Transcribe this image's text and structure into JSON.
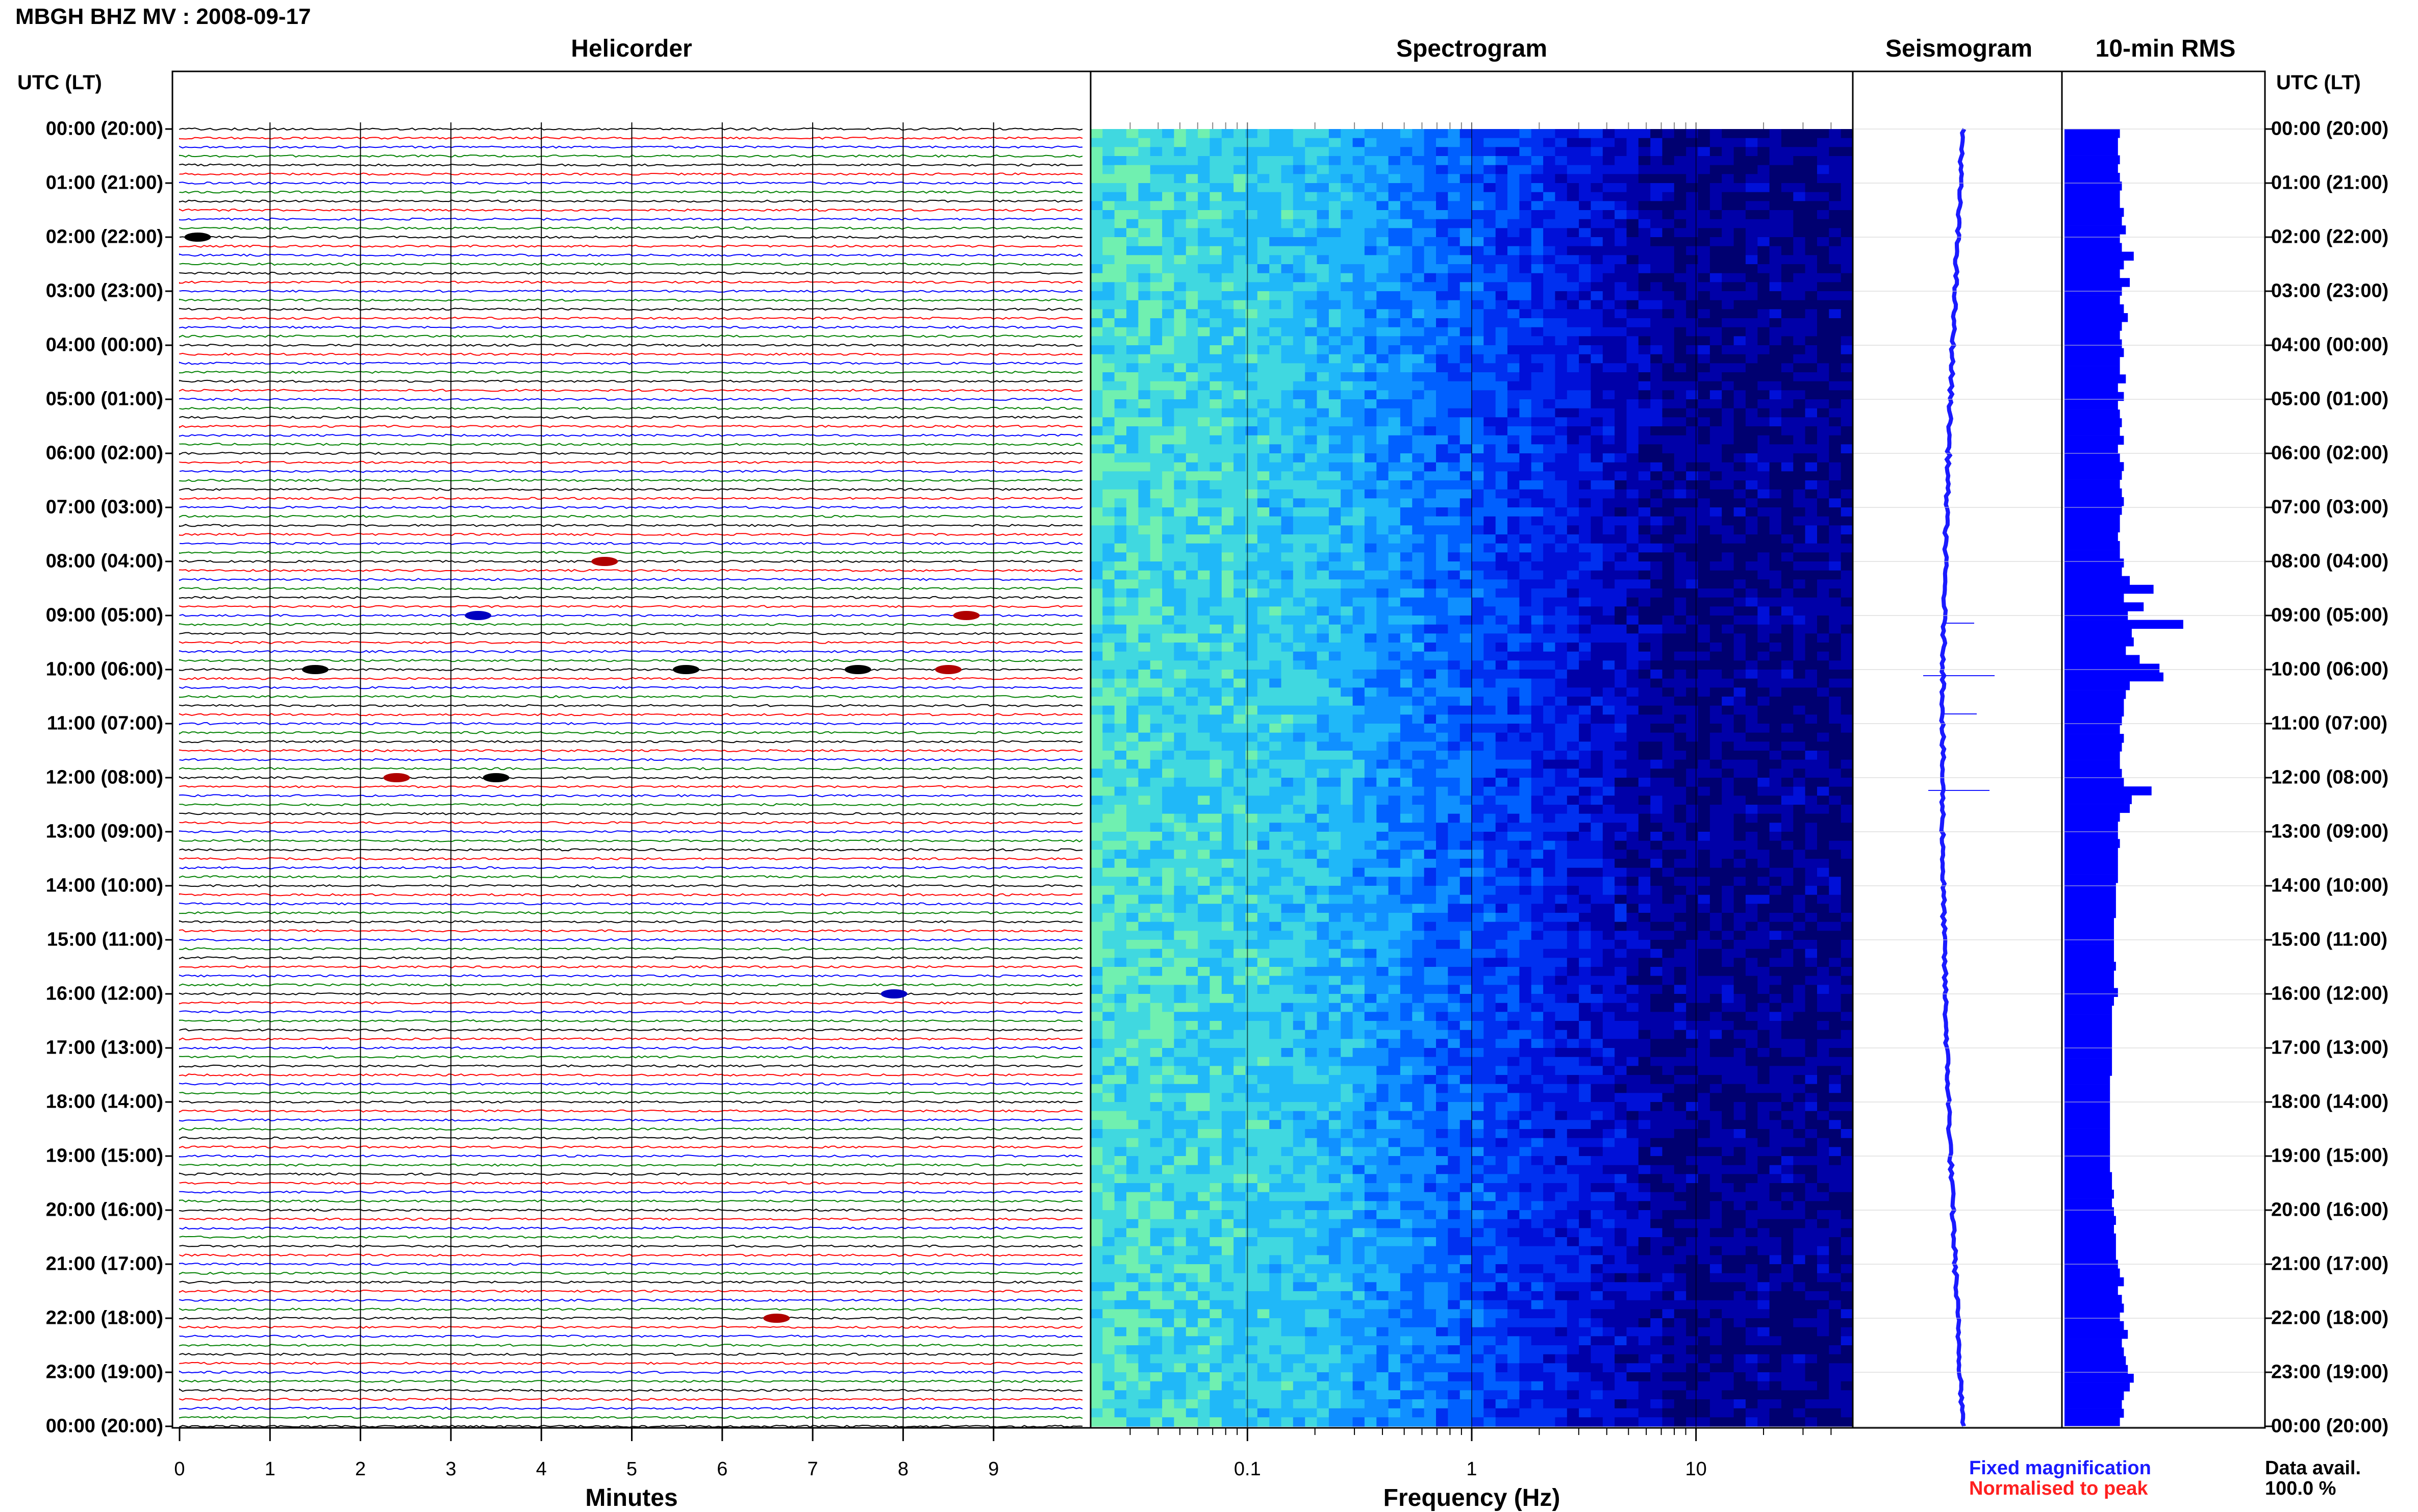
{
  "title": "MBGH BHZ MV : 2008-09-17",
  "panels": {
    "helicorder": "Helicorder",
    "spectrogram": "Spectrogram",
    "seismogram": "Seismogram",
    "rms": "10-min RMS"
  },
  "timezone_label_left": "UTC (LT)",
  "timezone_label_right": "UTC (LT)",
  "hour_labels": [
    "00:00 (20:00)",
    "01:00 (21:00)",
    "02:00 (22:00)",
    "03:00 (23:00)",
    "04:00 (00:00)",
    "05:00 (01:00)",
    "06:00 (02:00)",
    "07:00 (03:00)",
    "08:00 (04:00)",
    "09:00 (05:00)",
    "10:00 (06:00)",
    "11:00 (07:00)",
    "12:00 (08:00)",
    "13:00 (09:00)",
    "14:00 (10:00)",
    "15:00 (11:00)",
    "16:00 (12:00)",
    "17:00 (13:00)",
    "18:00 (14:00)",
    "19:00 (15:00)",
    "20:00 (16:00)",
    "21:00 (17:00)",
    "22:00 (18:00)",
    "23:00 (19:00)",
    "00:00 (20:00)"
  ],
  "helicorder_xticks": [
    "0",
    "1",
    "2",
    "3",
    "4",
    "5",
    "6",
    "7",
    "8",
    "9"
  ],
  "helicorder_xlabel": "Minutes",
  "spectrogram_xticks": [
    "0.1",
    "1",
    "10"
  ],
  "spectrogram_xlabel": "Frequency (Hz)",
  "legend": {
    "fixed": "Fixed magnification",
    "normalised": "Normalised to peak"
  },
  "data_avail": {
    "label": "Data avail.",
    "value": "100.0 %"
  },
  "colors": {
    "trace_cycle": [
      "#000000",
      "#ff0000",
      "#0000ff",
      "#008000"
    ],
    "spectrogram_low": "#0000a0",
    "spectrogram_mid": "#1e90ff",
    "spectrogram_high": "#7cfc00",
    "seismogram": "#1a1aff",
    "rms": "#0000ff"
  },
  "chart_data": {
    "type": "heatmap",
    "helicorder": {
      "minutes_per_line": 10,
      "lines_per_hour": 6,
      "hours": 24,
      "x_range_minutes": [
        0,
        10
      ],
      "events": [
        {
          "hour": 2,
          "minute": 0.2,
          "color": "black"
        },
        {
          "hour": 8,
          "minute": 4.7,
          "color": "red"
        },
        {
          "hour": 9,
          "minute": 3.3,
          "color": "blue"
        },
        {
          "hour": 9,
          "minute": 8.7,
          "color": "red"
        },
        {
          "hour": 10,
          "minute": 7.5,
          "color": "black"
        },
        {
          "hour": 10,
          "minute": 8.5,
          "color": "red"
        },
        {
          "hour": 10,
          "minute": 1.5,
          "color": "black"
        },
        {
          "hour": 10,
          "minute": 5.6,
          "color": "black"
        },
        {
          "hour": 12,
          "minute": 2.4,
          "color": "red"
        },
        {
          "hour": 12,
          "minute": 3.5,
          "color": "black"
        },
        {
          "hour": 16,
          "minute": 7.9,
          "color": "blue"
        },
        {
          "hour": 22,
          "minute": 6.6,
          "color": "red"
        }
      ]
    },
    "spectrogram": {
      "x_scale": "log",
      "x_range_hz": [
        0.02,
        50
      ],
      "xticks_hz": [
        0.1,
        1,
        10
      ]
    },
    "rms": {
      "interval_minutes": 10,
      "normalized_values": [
        0.28,
        0.27,
        0.27,
        0.28,
        0.27,
        0.28,
        0.29,
        0.28,
        0.28,
        0.3,
        0.29,
        0.31,
        0.28,
        0.29,
        0.35,
        0.3,
        0.28,
        0.33,
        0.29,
        0.28,
        0.3,
        0.32,
        0.29,
        0.28,
        0.29,
        0.3,
        0.28,
        0.28,
        0.31,
        0.27,
        0.3,
        0.27,
        0.28,
        0.29,
        0.28,
        0.3,
        0.27,
        0.28,
        0.3,
        0.29,
        0.28,
        0.29,
        0.3,
        0.29,
        0.28,
        0.28,
        0.27,
        0.28,
        0.28,
        0.3,
        0.29,
        0.33,
        0.45,
        0.3,
        0.4,
        0.32,
        0.6,
        0.34,
        0.35,
        0.31,
        0.38,
        0.48,
        0.5,
        0.33,
        0.31,
        0.3,
        0.3,
        0.29,
        0.28,
        0.3,
        0.29,
        0.28,
        0.28,
        0.29,
        0.3,
        0.44,
        0.34,
        0.33,
        0.28,
        0.27,
        0.27,
        0.28,
        0.27,
        0.27,
        0.27,
        0.27,
        0.26,
        0.26,
        0.26,
        0.26,
        0.25,
        0.25,
        0.25,
        0.25,
        0.25,
        0.26,
        0.25,
        0.25,
        0.27,
        0.25,
        0.24,
        0.24,
        0.24,
        0.24,
        0.24,
        0.24,
        0.24,
        0.24,
        0.23,
        0.23,
        0.23,
        0.23,
        0.23,
        0.23,
        0.23,
        0.23,
        0.23,
        0.23,
        0.23,
        0.24,
        0.24,
        0.25,
        0.24,
        0.25,
        0.26,
        0.25,
        0.26,
        0.26,
        0.26,
        0.27,
        0.28,
        0.3,
        0.27,
        0.29,
        0.3,
        0.28,
        0.3,
        0.32,
        0.29,
        0.3,
        0.31,
        0.32,
        0.35,
        0.33,
        0.3,
        0.29,
        0.3,
        0.28
      ]
    }
  }
}
